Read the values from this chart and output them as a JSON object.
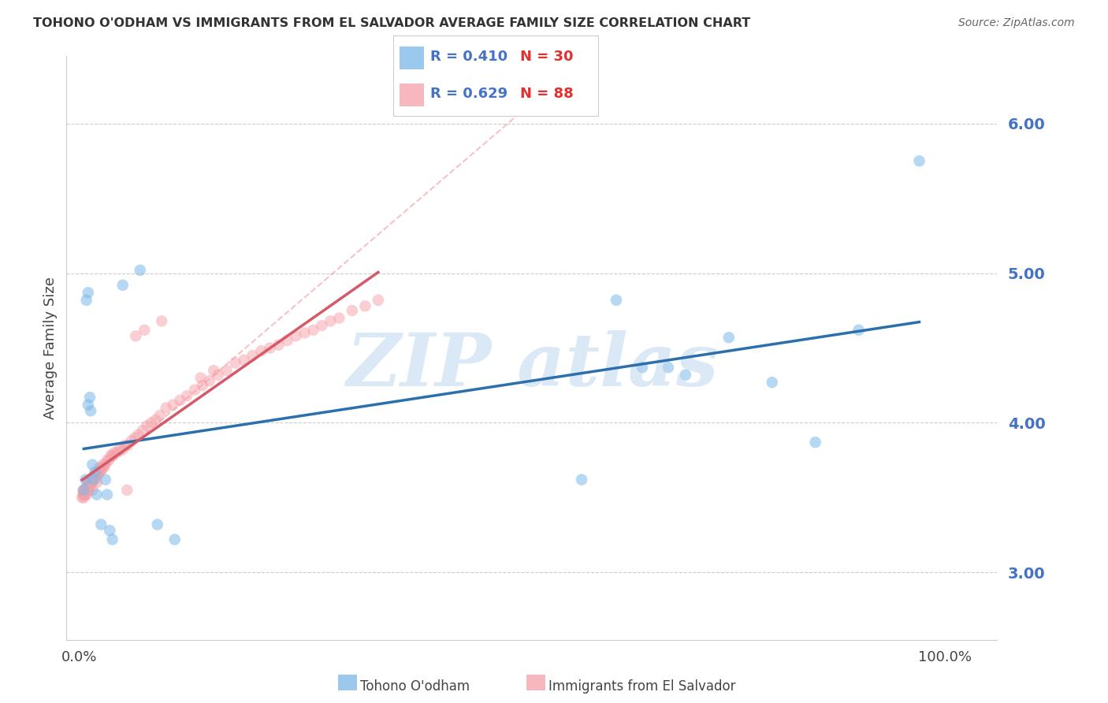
{
  "title": "TOHONO O'ODHAM VS IMMIGRANTS FROM EL SALVADOR AVERAGE FAMILY SIZE CORRELATION CHART",
  "source": "Source: ZipAtlas.com",
  "ylabel": "Average Family Size",
  "yticks": [
    3.0,
    4.0,
    5.0,
    6.0
  ],
  "ytick_labels": [
    "3.00",
    "4.00",
    "5.00",
    "6.00"
  ],
  "ymin": 2.55,
  "ymax": 6.45,
  "xmin": -0.015,
  "xmax": 1.06,
  "blue_color": "#7ab8e8",
  "pink_color": "#f4a0a8",
  "blue_line_color": "#2c6fad",
  "pink_line_color": "#d45a6a",
  "blue_scatter_alpha": 0.55,
  "pink_scatter_alpha": 0.5,
  "marker_size": 110,
  "watermark": "ZIP atlas",
  "blue_x": [
    0.005,
    0.007,
    0.008,
    0.01,
    0.01,
    0.012,
    0.013,
    0.015,
    0.016,
    0.018,
    0.02,
    0.025,
    0.03,
    0.032,
    0.035,
    0.038,
    0.05,
    0.07,
    0.09,
    0.11,
    0.58,
    0.62,
    0.65,
    0.68,
    0.7,
    0.75,
    0.8,
    0.85,
    0.9,
    0.97
  ],
  "blue_y": [
    3.55,
    3.62,
    4.82,
    4.87,
    4.12,
    4.17,
    4.08,
    3.72,
    3.62,
    3.67,
    3.52,
    3.32,
    3.62,
    3.52,
    3.28,
    3.22,
    4.92,
    5.02,
    3.32,
    3.22,
    3.62,
    4.82,
    4.37,
    4.37,
    4.32,
    4.57,
    4.27,
    3.87,
    4.62,
    5.75
  ],
  "pink_x": [
    0.003,
    0.004,
    0.004,
    0.005,
    0.005,
    0.006,
    0.006,
    0.007,
    0.007,
    0.008,
    0.008,
    0.009,
    0.009,
    0.01,
    0.01,
    0.011,
    0.011,
    0.012,
    0.012,
    0.013,
    0.013,
    0.014,
    0.015,
    0.015,
    0.016,
    0.017,
    0.018,
    0.019,
    0.02,
    0.02,
    0.021,
    0.022,
    0.023,
    0.024,
    0.025,
    0.026,
    0.027,
    0.028,
    0.03,
    0.032,
    0.034,
    0.036,
    0.038,
    0.04,
    0.043,
    0.046,
    0.05,
    0.053,
    0.056,
    0.06,
    0.064,
    0.068,
    0.073,
    0.078,
    0.083,
    0.088,
    0.093,
    0.1,
    0.108,
    0.116,
    0.124,
    0.133,
    0.142,
    0.15,
    0.16,
    0.17,
    0.18,
    0.19,
    0.2,
    0.21,
    0.22,
    0.23,
    0.24,
    0.25,
    0.26,
    0.27,
    0.28,
    0.29,
    0.3,
    0.315,
    0.33,
    0.345,
    0.065,
    0.075,
    0.095,
    0.055,
    0.14,
    0.155
  ],
  "pink_y": [
    3.5,
    3.52,
    3.55,
    3.5,
    3.52,
    3.53,
    3.55,
    3.52,
    3.55,
    3.52,
    3.55,
    3.57,
    3.58,
    3.55,
    3.58,
    3.57,
    3.6,
    3.57,
    3.6,
    3.6,
    3.62,
    3.62,
    3.55,
    3.6,
    3.62,
    3.65,
    3.62,
    3.65,
    3.6,
    3.65,
    3.65,
    3.67,
    3.7,
    3.68,
    3.68,
    3.7,
    3.72,
    3.7,
    3.72,
    3.75,
    3.75,
    3.78,
    3.78,
    3.8,
    3.8,
    3.82,
    3.82,
    3.85,
    3.85,
    3.88,
    3.9,
    3.92,
    3.95,
    3.98,
    4.0,
    4.02,
    4.05,
    4.1,
    4.12,
    4.15,
    4.18,
    4.22,
    4.25,
    4.28,
    4.32,
    4.35,
    4.4,
    4.42,
    4.45,
    4.48,
    4.5,
    4.52,
    4.55,
    4.58,
    4.6,
    4.62,
    4.65,
    4.68,
    4.7,
    4.75,
    4.78,
    4.82,
    4.58,
    4.62,
    4.68,
    3.55,
    4.3,
    4.35
  ],
  "ref_line_x": [
    0.0,
    1.06
  ],
  "ref_line_y": [
    3.55,
    8.8
  ]
}
